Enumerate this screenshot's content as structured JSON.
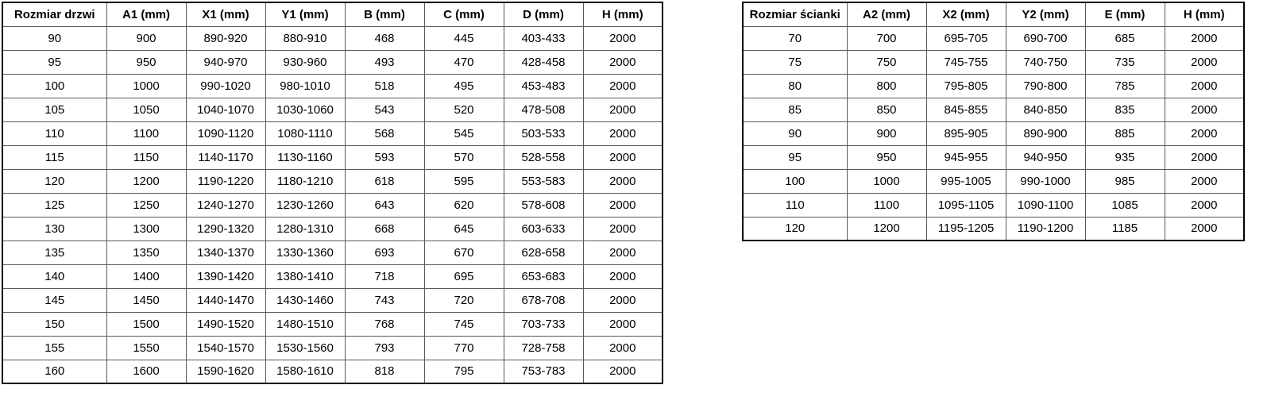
{
  "tables": {
    "doors": {
      "name": "door-sizes-table",
      "headers": [
        "Rozmiar drzwi",
        "A1 (mm)",
        "X1 (mm)",
        "Y1 (mm)",
        "B (mm)",
        "C (mm)",
        "D (mm)",
        "H (mm)"
      ],
      "rows": [
        [
          "90",
          "900",
          "890-920",
          "880-910",
          "468",
          "445",
          "403-433",
          "2000"
        ],
        [
          "95",
          "950",
          "940-970",
          "930-960",
          "493",
          "470",
          "428-458",
          "2000"
        ],
        [
          "100",
          "1000",
          "990-1020",
          "980-1010",
          "518",
          "495",
          "453-483",
          "2000"
        ],
        [
          "105",
          "1050",
          "1040-1070",
          "1030-1060",
          "543",
          "520",
          "478-508",
          "2000"
        ],
        [
          "110",
          "1100",
          "1090-1120",
          "1080-1110",
          "568",
          "545",
          "503-533",
          "2000"
        ],
        [
          "115",
          "1150",
          "1140-1170",
          "1130-1160",
          "593",
          "570",
          "528-558",
          "2000"
        ],
        [
          "120",
          "1200",
          "1190-1220",
          "1180-1210",
          "618",
          "595",
          "553-583",
          "2000"
        ],
        [
          "125",
          "1250",
          "1240-1270",
          "1230-1260",
          "643",
          "620",
          "578-608",
          "2000"
        ],
        [
          "130",
          "1300",
          "1290-1320",
          "1280-1310",
          "668",
          "645",
          "603-633",
          "2000"
        ],
        [
          "135",
          "1350",
          "1340-1370",
          "1330-1360",
          "693",
          "670",
          "628-658",
          "2000"
        ],
        [
          "140",
          "1400",
          "1390-1420",
          "1380-1410",
          "718",
          "695",
          "653-683",
          "2000"
        ],
        [
          "145",
          "1450",
          "1440-1470",
          "1430-1460",
          "743",
          "720",
          "678-708",
          "2000"
        ],
        [
          "150",
          "1500",
          "1490-1520",
          "1480-1510",
          "768",
          "745",
          "703-733",
          "2000"
        ],
        [
          "155",
          "1550",
          "1540-1570",
          "1530-1560",
          "793",
          "770",
          "728-758",
          "2000"
        ],
        [
          "160",
          "1600",
          "1590-1620",
          "1580-1610",
          "818",
          "795",
          "753-783",
          "2000"
        ]
      ]
    },
    "walls": {
      "name": "wall-panel-sizes-table",
      "headers": [
        "Rozmiar ścianki",
        "A2 (mm)",
        "X2 (mm)",
        "Y2 (mm)",
        "E (mm)",
        "H (mm)"
      ],
      "rows": [
        [
          "70",
          "700",
          "695-705",
          "690-700",
          "685",
          "2000"
        ],
        [
          "75",
          "750",
          "745-755",
          "740-750",
          "735",
          "2000"
        ],
        [
          "80",
          "800",
          "795-805",
          "790-800",
          "785",
          "2000"
        ],
        [
          "85",
          "850",
          "845-855",
          "840-850",
          "835",
          "2000"
        ],
        [
          "90",
          "900",
          "895-905",
          "890-900",
          "885",
          "2000"
        ],
        [
          "95",
          "950",
          "945-955",
          "940-950",
          "935",
          "2000"
        ],
        [
          "100",
          "1000",
          "995-1005",
          "990-1000",
          "985",
          "2000"
        ],
        [
          "110",
          "1100",
          "1095-1105",
          "1090-1100",
          "1085",
          "2000"
        ],
        [
          "120",
          "1200",
          "1195-1205",
          "1190-1200",
          "1185",
          "2000"
        ]
      ]
    }
  },
  "colors": {
    "border_outer": "#000000",
    "border_inner": "#595959",
    "text": "#000000",
    "background": "#ffffff"
  }
}
